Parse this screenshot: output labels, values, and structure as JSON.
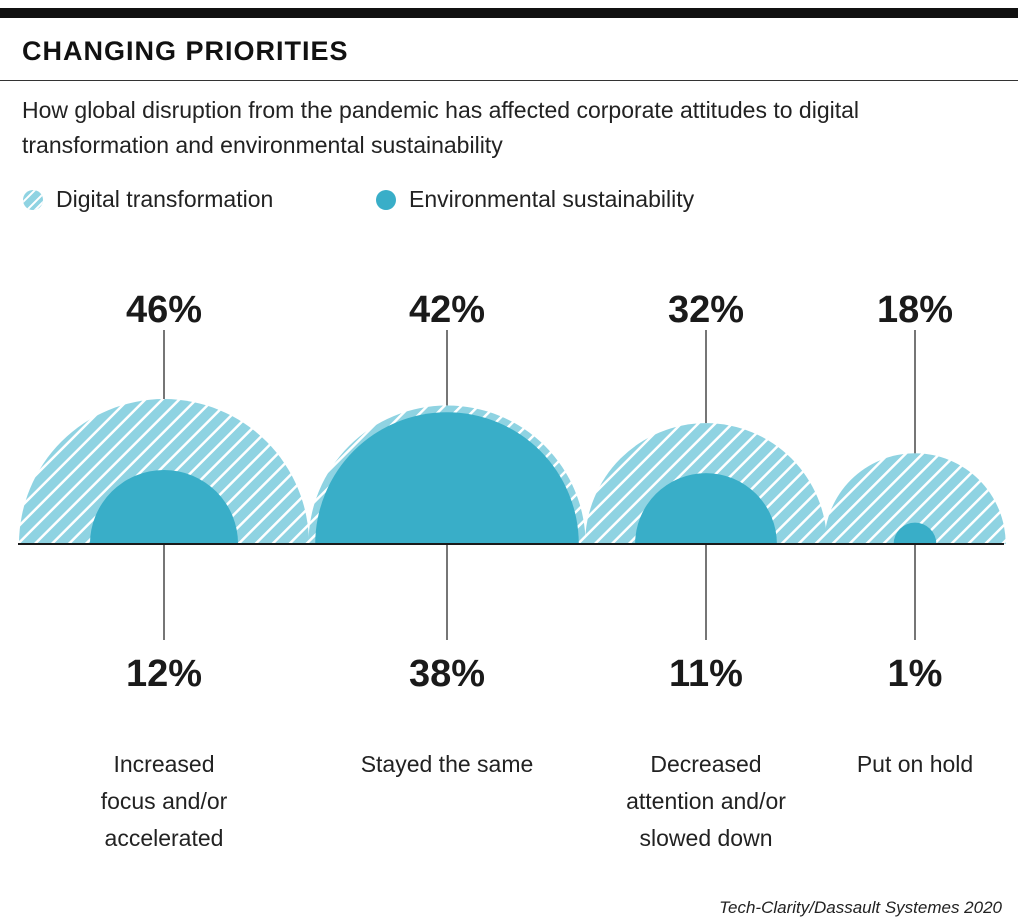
{
  "title": "CHANGING PRIORITIES",
  "subtitle": "How global disruption from the pandemic has affected corporate attitudes to digital transformation and environmental sustainability",
  "source": "Tech-Clarity/Dassault Systemes 2020",
  "colors": {
    "digital": "#8fd3e2",
    "environmental": "#39aec8",
    "ink": "#1a1a1a"
  },
  "legend": {
    "digital_label": "Digital transformation",
    "environmental_label": "Environmental sustainability"
  },
  "chart_data": {
    "type": "semicircle-area",
    "series": [
      {
        "name": "Digital transformation",
        "pattern": "hatched",
        "values": [
          46,
          42,
          32,
          18
        ]
      },
      {
        "name": "Environmental sustainability",
        "pattern": "solid",
        "values": [
          12,
          38,
          11,
          1
        ]
      }
    ],
    "categories": [
      "Increased focus and/or accelerated",
      "Stayed the same",
      "Decreased attention and/or slowed down",
      "Put on hold"
    ],
    "value_labels": {
      "digital": [
        "46%",
        "42%",
        "32%",
        "18%"
      ],
      "environmental": [
        "12%",
        "38%",
        "11%",
        "1%"
      ]
    },
    "category_lines": [
      [
        "Increased",
        "focus and/or",
        "accelerated"
      ],
      [
        "Stayed the same"
      ],
      [
        "Decreased",
        "attention and/or",
        "slowed down"
      ],
      [
        "Put on hold"
      ]
    ]
  }
}
